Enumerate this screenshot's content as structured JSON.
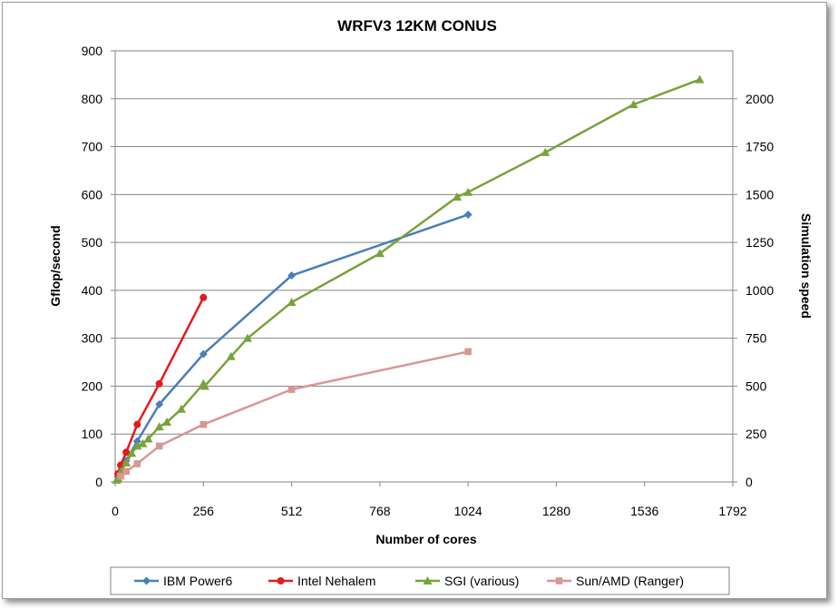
{
  "chart_data": {
    "type": "line",
    "title": "WRFV3 12KM CONUS",
    "xlabel": "Number of cores",
    "ylabel": "Gflop/second",
    "y2label": "Simulation speed",
    "xlim": [
      0,
      1792
    ],
    "ylim": [
      0,
      900
    ],
    "y2lim": [
      0,
      2250
    ],
    "xticks": [
      "0",
      "256",
      "512",
      "768",
      "1024",
      "1280",
      "1536",
      "1792"
    ],
    "yticks": [
      "0",
      "100",
      "200",
      "300",
      "400",
      "500",
      "600",
      "700",
      "800",
      "900"
    ],
    "y2ticks": [
      "0",
      "250",
      "500",
      "750",
      "1000",
      "1250",
      "1500",
      "1750",
      "2000"
    ],
    "grid": true,
    "legend_position": "bottom",
    "series": [
      {
        "name": "IBM Power6",
        "color": "#4a7ebb",
        "marker": "diamond",
        "x": [
          8,
          16,
          32,
          64,
          128,
          256,
          512,
          1024
        ],
        "y": [
          11,
          22,
          44,
          85,
          162,
          267,
          431,
          558
        ]
      },
      {
        "name": "Intel Nehalem",
        "color": "#e41a1c",
        "marker": "circle",
        "x": [
          8,
          16,
          32,
          64,
          128,
          256
        ],
        "y": [
          17,
          35,
          62,
          120,
          205,
          385
        ]
      },
      {
        "name": "SGI (various)",
        "color": "#77a33b",
        "marker": "triangle",
        "x": [
          4,
          8,
          16,
          32,
          48,
          64,
          80,
          96,
          128,
          150,
          192,
          256,
          260,
          336,
          384,
          512,
          768,
          992,
          1024,
          1248,
          1504,
          1696
        ],
        "y": [
          4,
          8,
          22,
          40,
          60,
          75,
          80,
          90,
          115,
          125,
          152,
          205,
          200,
          262,
          300,
          375,
          477,
          595,
          605,
          688,
          788,
          840
        ]
      },
      {
        "name": "Sun/AMD (Ranger)",
        "color": "#d99694",
        "marker": "square",
        "x": [
          16,
          32,
          64,
          128,
          256,
          512,
          1024
        ],
        "y": [
          12,
          22,
          38,
          75,
          120,
          193,
          272
        ]
      }
    ]
  }
}
